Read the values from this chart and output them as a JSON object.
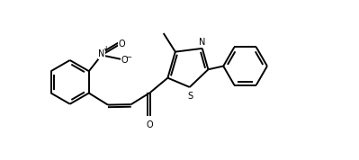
{
  "background": "#ffffff",
  "bond_color": "#000000",
  "text_color": "#000000",
  "lw": 1.4,
  "figsize": [
    3.99,
    1.78
  ],
  "dpi": 100,
  "xlim": [
    0.0,
    7.8
  ],
  "ylim": [
    -0.3,
    3.5
  ]
}
